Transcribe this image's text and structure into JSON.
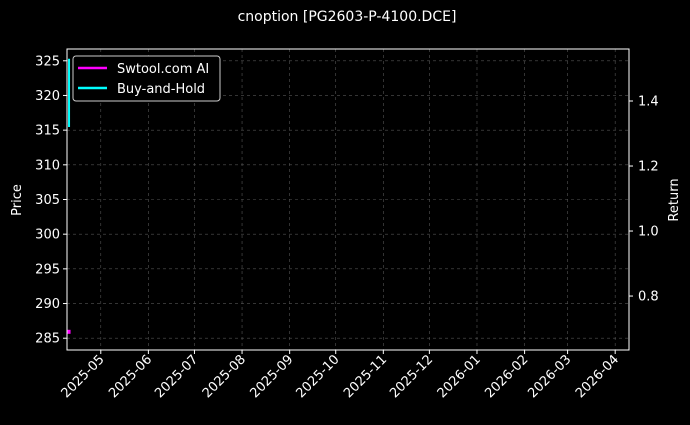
{
  "chart_data": {
    "type": "line",
    "title": "cnoption [PG2603-P-4100.DCE]",
    "xlabel": "",
    "ylabel": "Price",
    "y2label": "Return",
    "xlim": [
      "2025-04-09",
      "2026-04-10"
    ],
    "ylim": [
      283.3,
      326.7
    ],
    "y2lim": [
      0.634,
      1.56
    ],
    "x_ticks": [
      "2025-05",
      "2025-06",
      "2025-07",
      "2025-08",
      "2025-09",
      "2025-10",
      "2025-11",
      "2025-12",
      "2026-01",
      "2026-02",
      "2026-03",
      "2026-04"
    ],
    "y_ticks": [
      285,
      290,
      295,
      300,
      305,
      310,
      315,
      320,
      325
    ],
    "y2_ticks": [
      0.8,
      1.0,
      1.2,
      1.4
    ],
    "grid": true,
    "legend_position": "top-left",
    "series": [
      {
        "name": "Swtool.com AI",
        "color": "#ff00ff",
        "axis": "right",
        "x": [
          "2025-04-10"
        ],
        "y": [
          0.69
        ]
      },
      {
        "name": "Buy-and-Hold",
        "color": "#00ffff",
        "axis": "right",
        "x": [
          "2025-04-10",
          "2025-04-10"
        ],
        "y": [
          1.32,
          1.53
        ]
      }
    ]
  }
}
